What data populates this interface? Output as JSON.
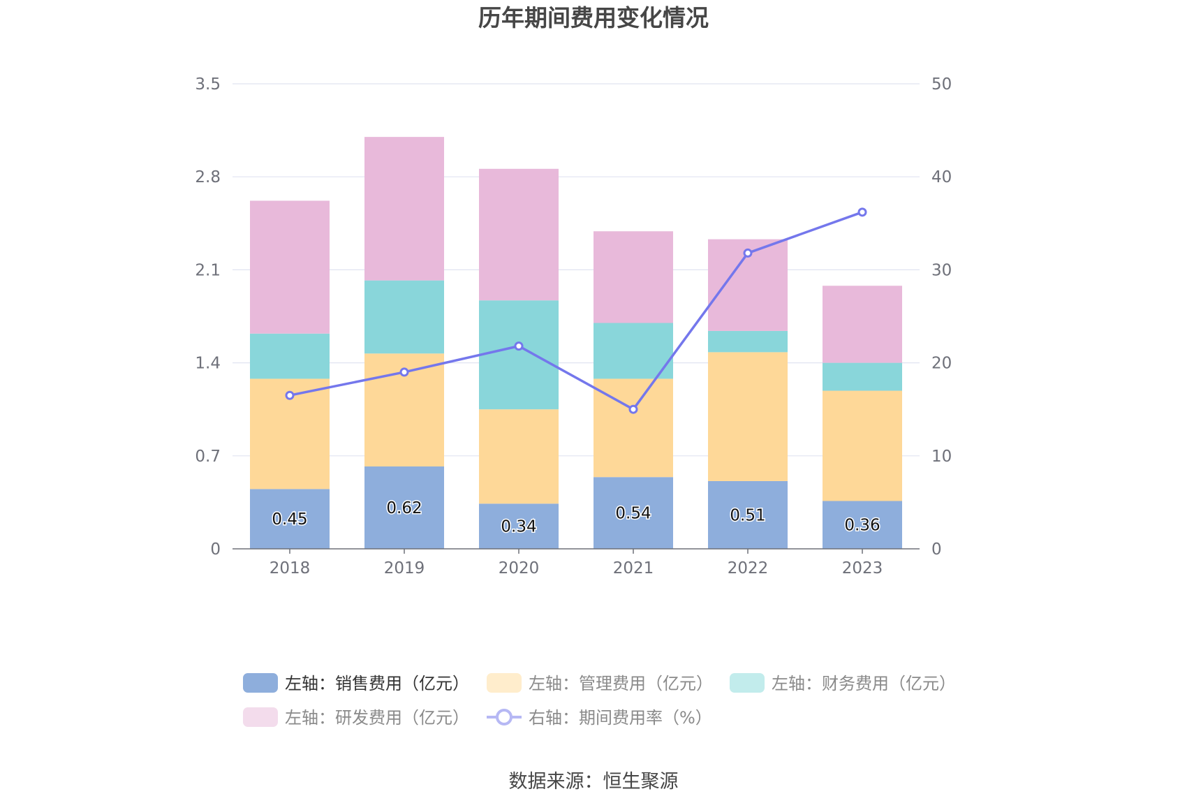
{
  "title": "历年期间费用变化情况",
  "source": "数据来源：恒生聚源",
  "chart_data": {
    "type": "bar",
    "stacked": true,
    "categories": [
      "2018",
      "2019",
      "2020",
      "2021",
      "2022",
      "2023"
    ],
    "y_left": {
      "ylim": [
        0,
        3.5
      ],
      "ticks": [
        "0",
        "0.7",
        "1.4",
        "2.1",
        "2.8",
        "3.5"
      ]
    },
    "y_right": {
      "ylim": [
        0,
        50
      ],
      "ticks": [
        "0",
        "10",
        "20",
        "30",
        "40",
        "50"
      ]
    },
    "grid": true,
    "legend_position": "bottom",
    "series": [
      {
        "name": "左轴：销售费用（亿元）",
        "type": "bar",
        "axis": "left",
        "color": "#8eaedc",
        "legend_color": "#8eaedc",
        "show_labels": true,
        "legend_dim": false,
        "values": [
          0.45,
          0.62,
          0.34,
          0.54,
          0.51,
          0.36
        ]
      },
      {
        "name": "左轴：管理费用（亿元）",
        "type": "bar",
        "axis": "left",
        "color": "#fed898",
        "legend_color": "#ffedcc",
        "show_labels": false,
        "legend_dim": true,
        "values": [
          0.83,
          0.85,
          0.71,
          0.74,
          0.97,
          0.83
        ]
      },
      {
        "name": "左轴：财务费用（亿元）",
        "type": "bar",
        "axis": "left",
        "color": "#89d6da",
        "legend_color": "#c2ecec",
        "show_labels": false,
        "legend_dim": true,
        "values": [
          0.34,
          0.55,
          0.82,
          0.42,
          0.16,
          0.21
        ]
      },
      {
        "name": "左轴：研发费用（亿元）",
        "type": "bar",
        "axis": "left",
        "color": "#e8b9da",
        "legend_color": "#f3dcec",
        "show_labels": false,
        "legend_dim": true,
        "values": [
          1.0,
          1.08,
          0.99,
          0.69,
          0.69,
          0.58
        ]
      },
      {
        "name": "右轴：期间费用率（%）",
        "type": "line",
        "axis": "right",
        "color": "#7477ec",
        "legend_color": "#b6b8f4",
        "show_labels": false,
        "legend_dim": true,
        "values": [
          16.5,
          19.0,
          21.8,
          15.0,
          31.8,
          36.2
        ]
      }
    ]
  }
}
